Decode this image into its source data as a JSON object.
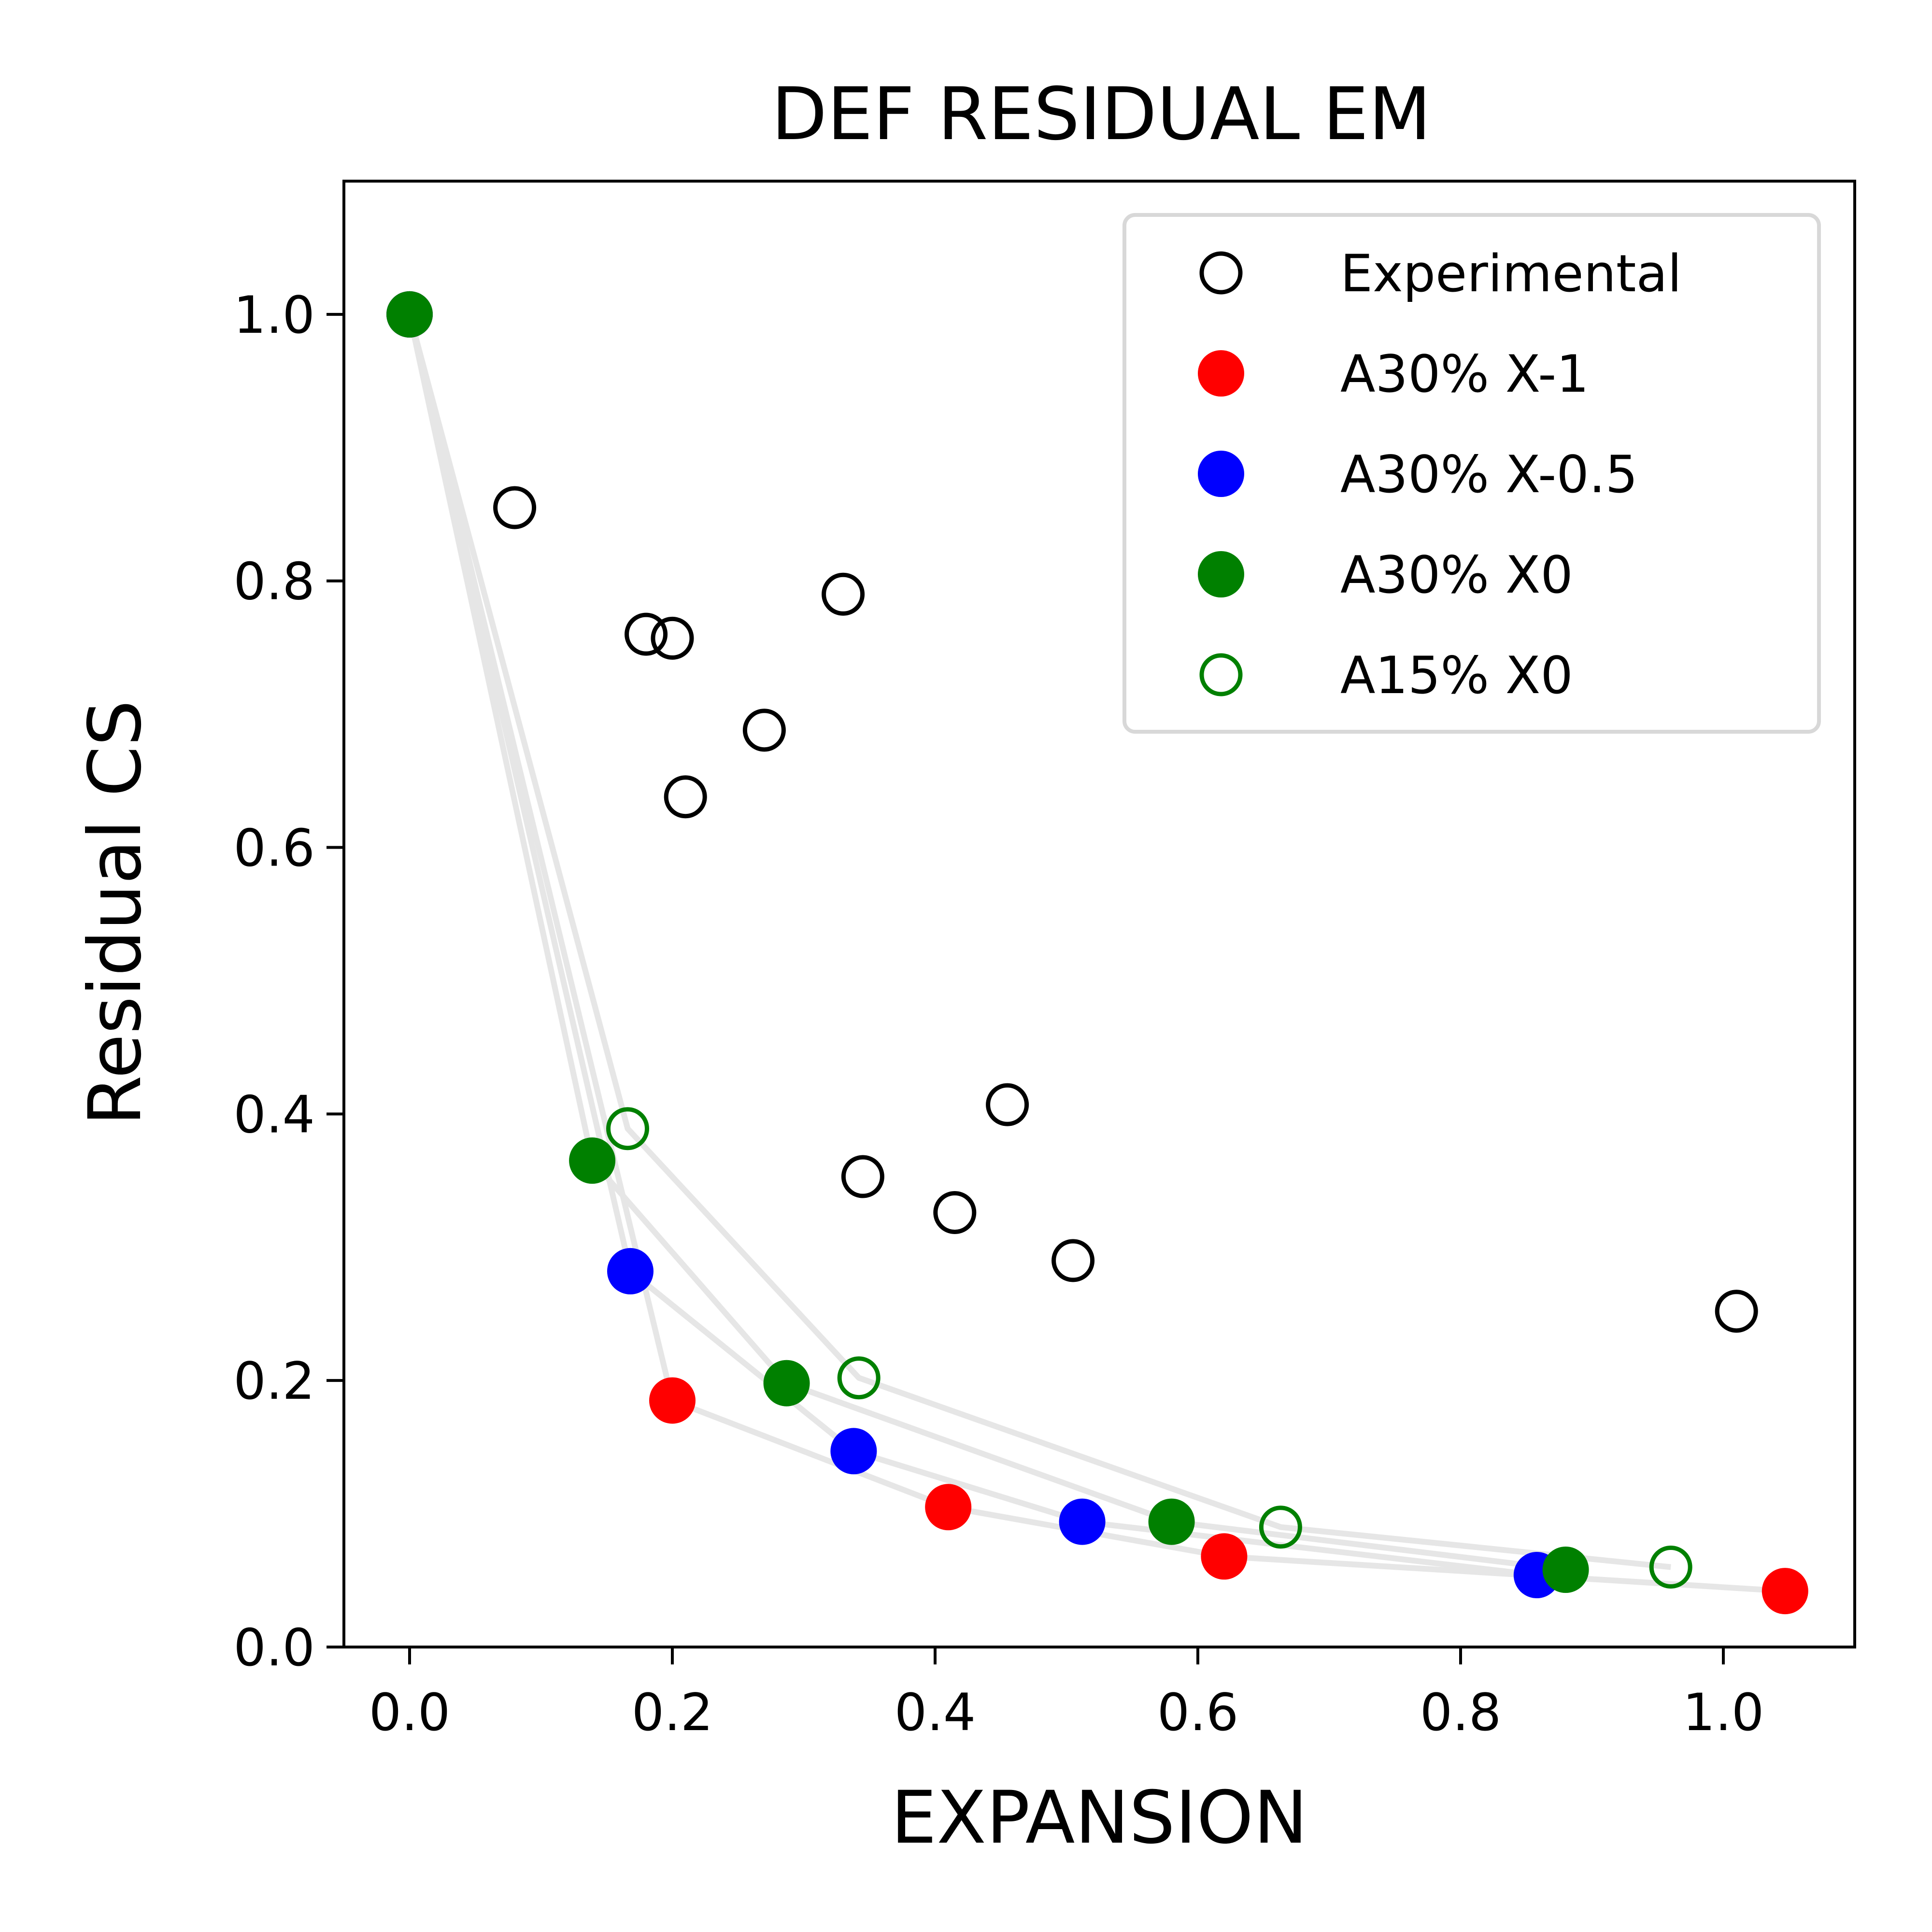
{
  "chart_data": {
    "type": "scatter",
    "title": "DEF RESIDUAL EM",
    "xlabel": "EXPANSION",
    "ylabel": "Residual CS",
    "xlim": [
      -0.05,
      1.1
    ],
    "ylim": [
      0.0,
      1.1
    ],
    "xticks": [
      0.0,
      0.2,
      0.4,
      0.6,
      0.8,
      1.0
    ],
    "yticks": [
      0.0,
      0.2,
      0.4,
      0.6,
      0.8,
      1.0
    ],
    "xtick_labels": [
      "0.0",
      "0.2",
      "0.4",
      "0.6",
      "0.8",
      "1.0"
    ],
    "ytick_labels": [
      "0.0",
      "0.2",
      "0.4",
      "0.6",
      "0.8",
      "1.0"
    ],
    "grid": false,
    "legend_position": "top-right",
    "connector_color": "#e6e6e6",
    "series": [
      {
        "name": "Experimental",
        "marker": "open-circle",
        "color": "#000000",
        "x": [
          0.08,
          0.18,
          0.2,
          0.21,
          0.27,
          0.33,
          0.345,
          0.415,
          0.455,
          0.505,
          1.01
        ],
        "y": [
          0.855,
          0.76,
          0.757,
          0.638,
          0.688,
          0.79,
          0.353,
          0.326,
          0.407,
          0.29,
          0.252
        ]
      },
      {
        "name": "A30% X-1",
        "marker": "filled-circle",
        "color": "#ff0000",
        "x": [
          0.0,
          0.2,
          0.41,
          0.62,
          1.047
        ],
        "y": [
          1.0,
          0.185,
          0.105,
          0.068,
          0.042
        ]
      },
      {
        "name": "A30% X-0.5",
        "marker": "filled-circle",
        "color": "#0000ff",
        "x": [
          0.0,
          0.168,
          0.338,
          0.512,
          0.858
        ],
        "y": [
          1.0,
          0.282,
          0.147,
          0.094,
          0.054
        ]
      },
      {
        "name": "A30% X0",
        "marker": "filled-circle",
        "color": "#008000",
        "x": [
          0.0,
          0.139,
          0.287,
          0.58,
          0.88
        ],
        "y": [
          1.0,
          0.365,
          0.198,
          0.094,
          0.058
        ]
      },
      {
        "name": "A15% X0",
        "marker": "open-circle",
        "color": "#008000",
        "x": [
          0.0,
          0.166,
          0.342,
          0.663,
          0.96
        ],
        "y": [
          1.0,
          0.389,
          0.202,
          0.09,
          0.06
        ]
      }
    ]
  }
}
